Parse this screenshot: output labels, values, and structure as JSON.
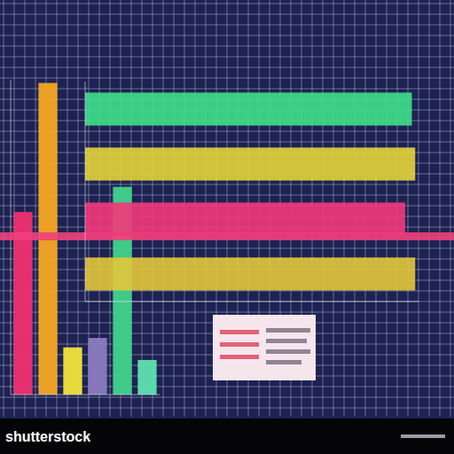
{
  "chart_data": [
    {
      "type": "bar",
      "categories": [
        null,
        null,
        null,
        null,
        null,
        null
      ],
      "values": [
        58,
        99,
        15,
        18,
        66,
        11
      ],
      "colors": [
        "#f03070",
        "#f5a623",
        "#f2e33a",
        "#8c7cc0",
        "#3fd58a",
        "#5fe0b0"
      ],
      "ylim": [
        0,
        100
      ],
      "tick_labels": false
    },
    {
      "type": "bar",
      "orientation": "horizontal",
      "categories": [
        null,
        null,
        null,
        null
      ],
      "values": [
        98,
        99,
        96,
        99
      ],
      "colors": [
        "#3ee08a",
        "#e6d43a",
        "#f2387a",
        "#e2c83a"
      ],
      "xlim": [
        0,
        100
      ],
      "tick_labels": false
    }
  ],
  "watermark": "shutterstock"
}
